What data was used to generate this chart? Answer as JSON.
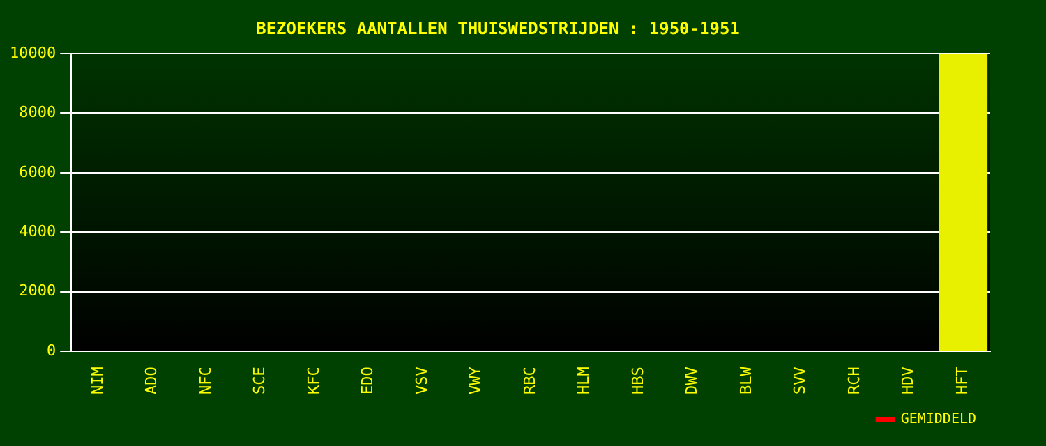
{
  "chart_data": {
    "type": "bar",
    "title": "BEZOEKERS AANTALLEN THUISWEDSTRIJDEN : 1950-1951",
    "categories": [
      "NIM",
      "ADO",
      "NFC",
      "SCE",
      "KFC",
      "EDO",
      "VSV",
      "VWY",
      "RBC",
      "HLM",
      "HBS",
      "DWV",
      "BLW",
      "SVV",
      "RCH",
      "HDV",
      "HFT"
    ],
    "series": [
      {
        "color": "#e8f000",
        "values": [
          null,
          null,
          null,
          null,
          null,
          null,
          null,
          null,
          null,
          null,
          null,
          null,
          null,
          null,
          null,
          null,
          10000
        ]
      },
      {
        "name": "GEMIDDELD",
        "type": "line",
        "color": "#ff0000",
        "values": [
          null,
          null,
          null,
          null,
          null,
          null,
          null,
          null,
          null,
          null,
          null,
          null,
          null,
          null,
          null,
          null,
          null
        ]
      }
    ],
    "ylim": [
      0,
      10000
    ],
    "yticks": [
      0,
      2000,
      4000,
      6000,
      8000,
      10000
    ],
    "grid": "y",
    "legend": "bottom right"
  }
}
